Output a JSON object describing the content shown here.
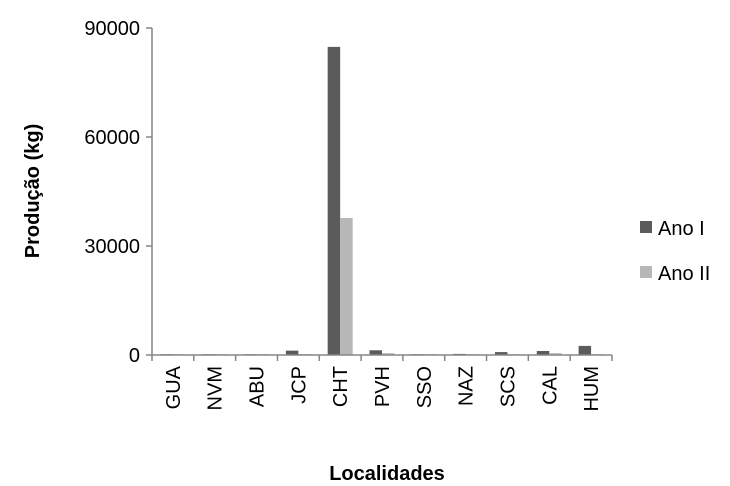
{
  "chart_data": {
    "type": "bar",
    "xlabel": "Localidades",
    "ylabel": "Produção (kg)",
    "categories": [
      "GUA",
      "NVM",
      "ABU",
      "JCP",
      "CHT",
      "PVH",
      "SSO",
      "NAZ",
      "SCS",
      "CAL",
      "HUM"
    ],
    "series": [
      {
        "name": "Ano I",
        "color": "#5b5b5b",
        "values": [
          100,
          50,
          30,
          1200,
          84800,
          1300,
          150,
          300,
          800,
          1100,
          2500
        ]
      },
      {
        "name": "Ano II",
        "color": "#b7b7b7",
        "values": [
          50,
          30,
          20,
          250,
          37700,
          500,
          80,
          100,
          200,
          500,
          150
        ]
      }
    ],
    "ylim": [
      0,
      90000
    ],
    "yticks": [
      0,
      30000,
      60000,
      90000
    ],
    "ytick_labels": [
      "0",
      "30000",
      "60000",
      "90000"
    ],
    "grid": false,
    "legend_position": "right"
  }
}
